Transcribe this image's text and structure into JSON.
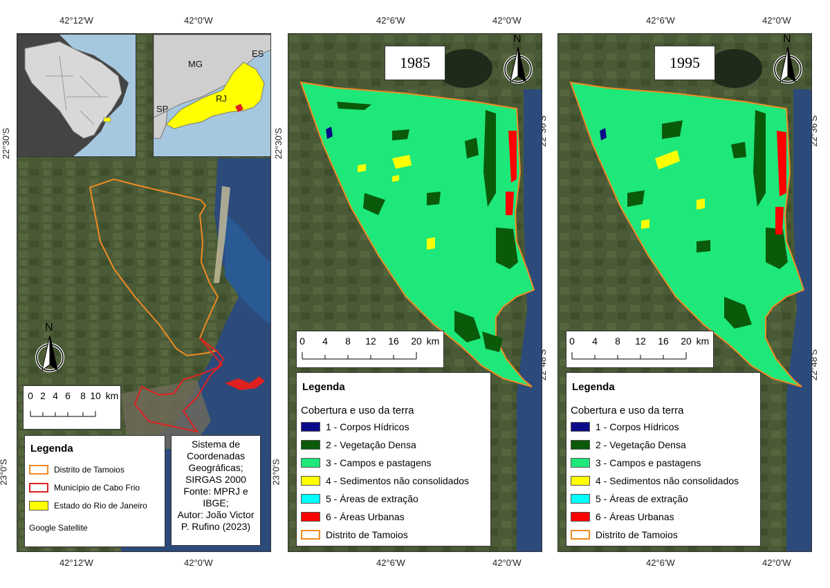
{
  "coords": {
    "lon_left_panel": [
      "42°12′W",
      "42°0′W"
    ],
    "lon_right_panels": [
      "42°6′W",
      "42°0′W"
    ],
    "lat_left_panel": [
      "22°30′S",
      "23°0′S"
    ],
    "lat_right_panels": [
      "22°36′S",
      "22°48′S"
    ]
  },
  "inset": {
    "mg": "MG",
    "es": "ES",
    "rj": "RJ",
    "sp": "SP"
  },
  "north_label": "N",
  "left_panel": {
    "scale_labels": [
      "0",
      "2",
      "4",
      "6",
      "8",
      "10",
      "km"
    ],
    "legend_title": "Legenda",
    "legend_items": [
      {
        "label": "Distrito de Tamoios",
        "stroke": "#f08a24",
        "fill": "#ffffff"
      },
      {
        "label": "Município de Cabo Frio",
        "stroke": "#e02020",
        "fill": "#ffffff"
      },
      {
        "label": "Estado do Rio de Janeiro",
        "stroke": "#888888",
        "fill": "#ffff00"
      }
    ],
    "basemap": "Google Satellite",
    "info_lines": [
      "Sistema de",
      "Coordenadas",
      "Geográficas;",
      "SIRGAS 2000",
      "Fonte: MPRJ e",
      "IBGE;",
      "Autor: João Victor",
      "P. Rufino (2023)"
    ]
  },
  "panels": [
    {
      "year": "1985"
    },
    {
      "year": "1995"
    }
  ],
  "landuse_scale_labels": [
    "0",
    "4",
    "8",
    "12",
    "16",
    "20",
    "km"
  ],
  "landuse_legend": {
    "title": "Legenda",
    "subtitle": "Cobertura e uso da terra",
    "items": [
      {
        "label": "1 - Corpos Hídricos",
        "color": "#0b0b8a"
      },
      {
        "label": "2 - Vegetação Densa",
        "color": "#0a5a0a"
      },
      {
        "label": "3 - Campos e pastagens",
        "color": "#1ee87a"
      },
      {
        "label": "4 - Sedimentos não consolidados",
        "color": "#ffff00"
      },
      {
        "label": "5 - Áreas de extração",
        "color": "#00ffff"
      },
      {
        "label": "6 - Áreas Urbanas",
        "color": "#ff0000"
      },
      {
        "label": "Distrito de Tamoios",
        "color": "#ffffff",
        "stroke": "#f08a24"
      }
    ]
  }
}
